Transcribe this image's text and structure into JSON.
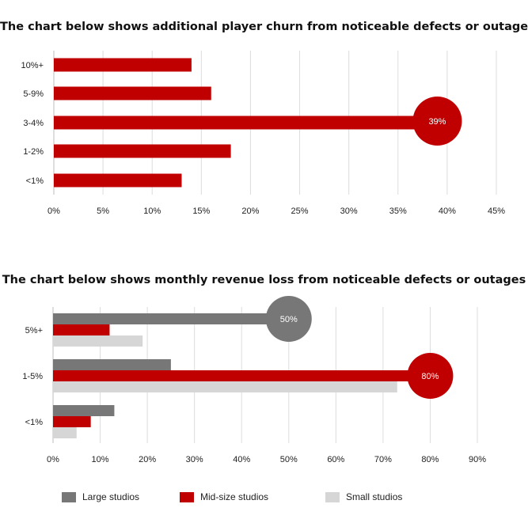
{
  "chart_data": [
    {
      "type": "bar",
      "orientation": "horizontal",
      "title": "The chart below shows additional player churn from noticeable defects or outages",
      "categories": [
        "10%+",
        "5-9%",
        "3-4%",
        "1-2%",
        "<1%"
      ],
      "values": [
        14,
        16,
        39,
        18,
        13
      ],
      "value_unit": "%",
      "xlim": [
        0,
        45
      ],
      "xticks": [
        "0%",
        "5%",
        "10%",
        "15%",
        "20%",
        "25%",
        "30%",
        "35%",
        "40%",
        "45%"
      ],
      "grid": "vertical",
      "color": "#c00000",
      "highlight": {
        "category": "3-4%",
        "label": "39%",
        "color": "#c00000"
      }
    },
    {
      "type": "bar",
      "orientation": "horizontal",
      "title": "The chart below shows monthly revenue loss from noticeable defects or outages",
      "categories": [
        "5%+",
        "1-5%",
        "<1%"
      ],
      "series": [
        {
          "name": "Large studios",
          "color": "#777777",
          "values": [
            50,
            25,
            13
          ]
        },
        {
          "name": "Mid-size studios",
          "color": "#c00000",
          "values": [
            12,
            80,
            8
          ]
        },
        {
          "name": "Small studios",
          "color": "#d6d6d6",
          "values": [
            19,
            73,
            5
          ]
        }
      ],
      "value_unit": "%",
      "xlim": [
        0,
        90
      ],
      "xticks": [
        "0%",
        "10%",
        "20%",
        "30%",
        "40%",
        "50%",
        "60%",
        "70%",
        "80%",
        "90%"
      ],
      "grid": "vertical",
      "legend": "bottom",
      "highlights": [
        {
          "category": "5%+",
          "series": "Large studios",
          "label": "50%",
          "color": "#777777"
        },
        {
          "category": "1-5%",
          "series": "Mid-size studios",
          "label": "80%",
          "color": "#c00000"
        }
      ]
    }
  ]
}
